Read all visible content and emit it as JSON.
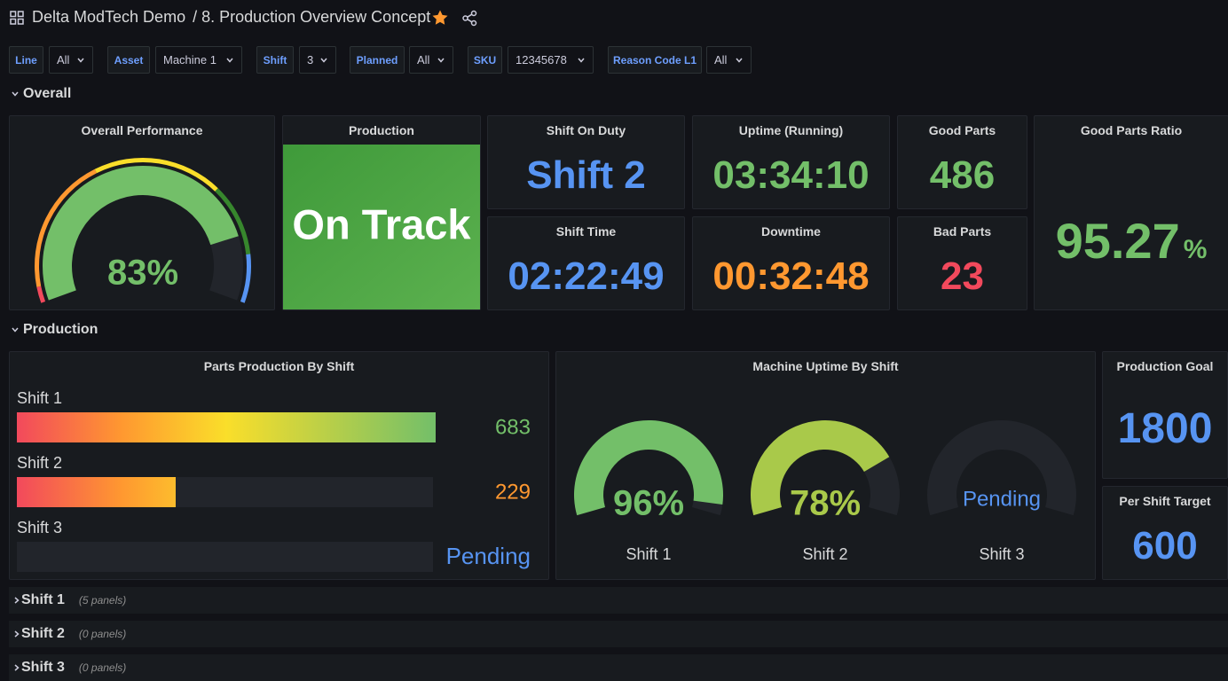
{
  "header": {
    "dashboard": "Delta ModTech Demo",
    "title": "/ 8. Production Overview Concept"
  },
  "variables": [
    {
      "label": "Line",
      "value": "All"
    },
    {
      "label": "Asset",
      "value": "Machine 1"
    },
    {
      "label": "Shift",
      "value": "3"
    },
    {
      "label": "Planned",
      "value": "All"
    },
    {
      "label": "SKU",
      "value": "12345678"
    },
    {
      "label": "Reason Code L1",
      "value": "All"
    }
  ],
  "rows": [
    {
      "title": "Overall"
    },
    {
      "title": "Production"
    }
  ],
  "overall": {
    "performance": {
      "title": "Overall Performance",
      "value": 83,
      "max": 100,
      "display": "83%",
      "color": "#73bf69"
    },
    "production": {
      "title": "Production",
      "status": "On Track"
    },
    "stats": [
      {
        "title": "Shift On Duty",
        "value": "Shift 2",
        "color": "#5794f2"
      },
      {
        "title": "Uptime (Running)",
        "value": "03:34:10",
        "color": "#73bf69"
      },
      {
        "title": "Good Parts",
        "value": 486,
        "color": "#73bf69"
      },
      {
        "title": "Shift Time",
        "value": "02:22:49",
        "color": "#5794f2"
      },
      {
        "title": "Downtime",
        "value": "00:32:48",
        "color": "#ff9830"
      },
      {
        "title": "Bad Parts",
        "value": 23,
        "color": "#f2495c"
      }
    ],
    "good_parts_ratio": {
      "title": "Good Parts Ratio",
      "value": 95.27,
      "unit": "%",
      "color": "#73bf69"
    }
  },
  "production": {
    "parts_by_shift": {
      "title": "Parts Production By Shift",
      "max": 600,
      "shifts": [
        {
          "label": "Shift 1",
          "value": 683,
          "color": "#73bf69"
        },
        {
          "label": "Shift 2",
          "value": 229,
          "color": "#ff9830"
        },
        {
          "label": "Shift 3",
          "value": null,
          "status": "Pending",
          "color": "#5794f2"
        }
      ]
    },
    "uptime_by_shift": {
      "title": "Machine Uptime By Shift",
      "max": 100,
      "gauges": [
        {
          "label": "Shift 1",
          "value": 96,
          "display": "96%",
          "color": "#73bf69"
        },
        {
          "label": "Shift 2",
          "value": 78,
          "display": "78%",
          "color": "#a9c94a"
        },
        {
          "label": "Shift 3",
          "value": null,
          "display": "Pending",
          "color": "#5794f2"
        }
      ]
    },
    "targets": [
      {
        "title": "Production Goal",
        "value": 1800,
        "color": "#5794f2"
      },
      {
        "title": "Per Shift Target",
        "value": 600,
        "color": "#5794f2"
      }
    ]
  },
  "collapsed_rows": [
    {
      "title": "Shift 1",
      "note": "(5 panels)"
    },
    {
      "title": "Shift 2",
      "note": "(0 panels)"
    },
    {
      "title": "Shift 3",
      "note": "(0 panels)"
    }
  ]
}
